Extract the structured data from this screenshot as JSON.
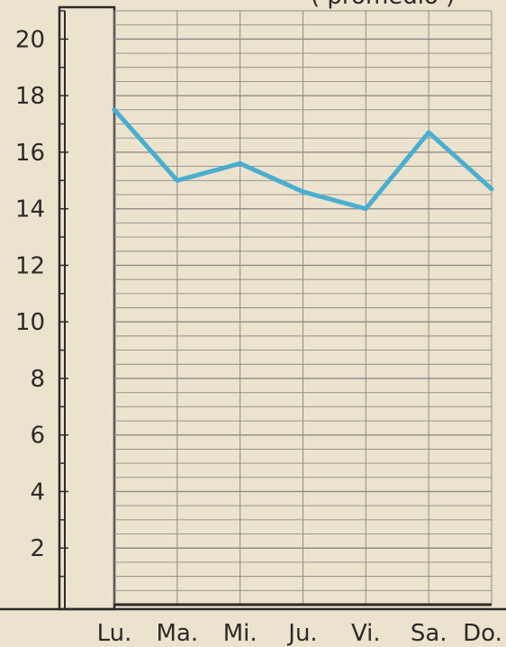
{
  "chart_data": {
    "type": "line",
    "title": "( promedio )",
    "categories": [
      "Lu.",
      "Ma.",
      "Mi.",
      "Ju.",
      "Vi.",
      "Sa.",
      "Do."
    ],
    "series": [
      {
        "values": [
          17.5,
          15,
          15.6,
          14.6,
          14,
          16.7,
          14.7
        ]
      }
    ],
    "y_ticks": [
      "2",
      "4",
      "6",
      "8",
      "10",
      "12",
      "14",
      "16",
      "18",
      "20"
    ],
    "ylim": [
      0,
      21
    ],
    "grid": true,
    "colors": {
      "line": "#4aaed0",
      "grid": "#8f8c86",
      "axis": "#2c2a28",
      "background": "#ece3cf"
    }
  }
}
